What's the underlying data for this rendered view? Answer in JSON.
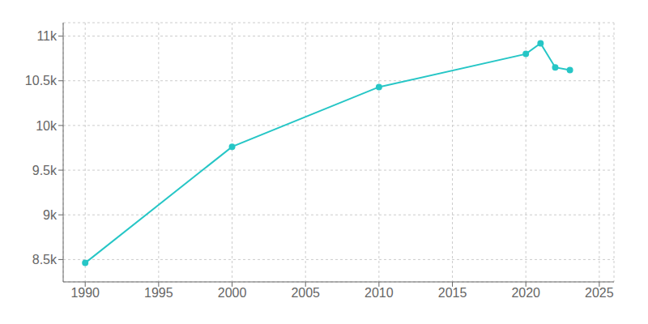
{
  "chart_data": {
    "type": "line",
    "x": [
      1990,
      2000,
      2010,
      2020,
      2021,
      2022,
      2023
    ],
    "values": [
      8462,
      9762,
      10430,
      10800,
      10920,
      10650,
      10620
    ],
    "color": "#26c6c6",
    "marker": "circle",
    "xlim": [
      1988.5,
      2026
    ],
    "ylim": [
      8250,
      11150
    ],
    "xticks": [
      1990,
      1995,
      2000,
      2005,
      2010,
      2015,
      2020,
      2025
    ],
    "yticks": [
      {
        "value": 8500,
        "label": "8.5k"
      },
      {
        "value": 9000,
        "label": "9k"
      },
      {
        "value": 9500,
        "label": "9.5k"
      },
      {
        "value": 10000,
        "label": "10k"
      },
      {
        "value": 10500,
        "label": "10.5k"
      },
      {
        "value": 11000,
        "label": "11k"
      }
    ],
    "grid": true
  }
}
